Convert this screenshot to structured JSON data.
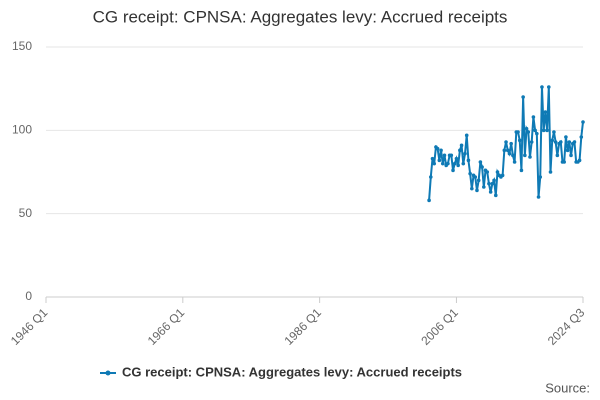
{
  "chart_data": {
    "type": "line",
    "title": "CG receipt: CPNSA: Aggregates levy: Accrued receipts",
    "x": [
      "2002 Q1",
      "2002 Q2",
      "2002 Q3",
      "2002 Q4",
      "2003 Q1",
      "2003 Q2",
      "2003 Q3",
      "2003 Q4",
      "2004 Q1",
      "2004 Q2",
      "2004 Q3",
      "2004 Q4",
      "2005 Q1",
      "2005 Q2",
      "2005 Q3",
      "2005 Q4",
      "2006 Q1",
      "2006 Q2",
      "2006 Q3",
      "2006 Q4",
      "2007 Q1",
      "2007 Q2",
      "2007 Q3",
      "2007 Q4",
      "2008 Q1",
      "2008 Q2",
      "2008 Q3",
      "2008 Q4",
      "2009 Q1",
      "2009 Q2",
      "2009 Q3",
      "2009 Q4",
      "2010 Q1",
      "2010 Q2",
      "2010 Q3",
      "2010 Q4",
      "2011 Q1",
      "2011 Q2",
      "2011 Q3",
      "2011 Q4",
      "2012 Q1",
      "2012 Q2",
      "2012 Q3",
      "2012 Q4",
      "2013 Q1",
      "2013 Q2",
      "2013 Q3",
      "2013 Q4",
      "2014 Q1",
      "2014 Q2",
      "2014 Q3",
      "2014 Q4",
      "2015 Q1",
      "2015 Q2",
      "2015 Q3",
      "2015 Q4",
      "2016 Q1",
      "2016 Q2",
      "2016 Q3",
      "2016 Q4",
      "2017 Q1",
      "2017 Q2",
      "2017 Q3",
      "2017 Q4",
      "2018 Q1",
      "2018 Q2",
      "2018 Q3",
      "2018 Q4",
      "2019 Q1",
      "2019 Q2",
      "2019 Q3",
      "2019 Q4",
      "2020 Q1",
      "2020 Q2",
      "2020 Q3",
      "2020 Q4",
      "2021 Q1",
      "2021 Q2",
      "2021 Q3",
      "2021 Q4",
      "2022 Q1",
      "2022 Q2",
      "2022 Q3",
      "2022 Q4",
      "2023 Q1",
      "2023 Q2",
      "2023 Q3",
      "2023 Q4",
      "2024 Q1",
      "2024 Q2",
      "2024 Q3"
    ],
    "series": [
      {
        "name": "CG receipt: CPNSA: Aggregates levy: Accrued receipts",
        "color": "#0f7ab5",
        "values": [
          58,
          72,
          83,
          80,
          90,
          89,
          82,
          88,
          80,
          85,
          79,
          80,
          85,
          85,
          76,
          80,
          83,
          79,
          88,
          91,
          80,
          86,
          97,
          82,
          74,
          65,
          73,
          72,
          64,
          70,
          81,
          78,
          66,
          76,
          75,
          68,
          63,
          68,
          70,
          61,
          75,
          73,
          72,
          73,
          88,
          93,
          88,
          86,
          92,
          85,
          81,
          99,
          99,
          94,
          76,
          120,
          85,
          101,
          99,
          84,
          93,
          108,
          100,
          98,
          60,
          72,
          126,
          100,
          111,
          100,
          126,
          75,
          94,
          99,
          93,
          85,
          92,
          93,
          81,
          81,
          96,
          88,
          93,
          85,
          92,
          93,
          81,
          81,
          82,
          96,
          105
        ]
      }
    ],
    "xlim": [
      "1946 Q1",
      "2024 Q3"
    ],
    "xticks": [
      "1946 Q1",
      "1966 Q1",
      "1986 Q1",
      "2006 Q1",
      "2024 Q3"
    ],
    "ylim": [
      0,
      150
    ],
    "yticks": [
      0,
      50,
      100,
      150
    ],
    "grid": true,
    "source": "Source:"
  }
}
